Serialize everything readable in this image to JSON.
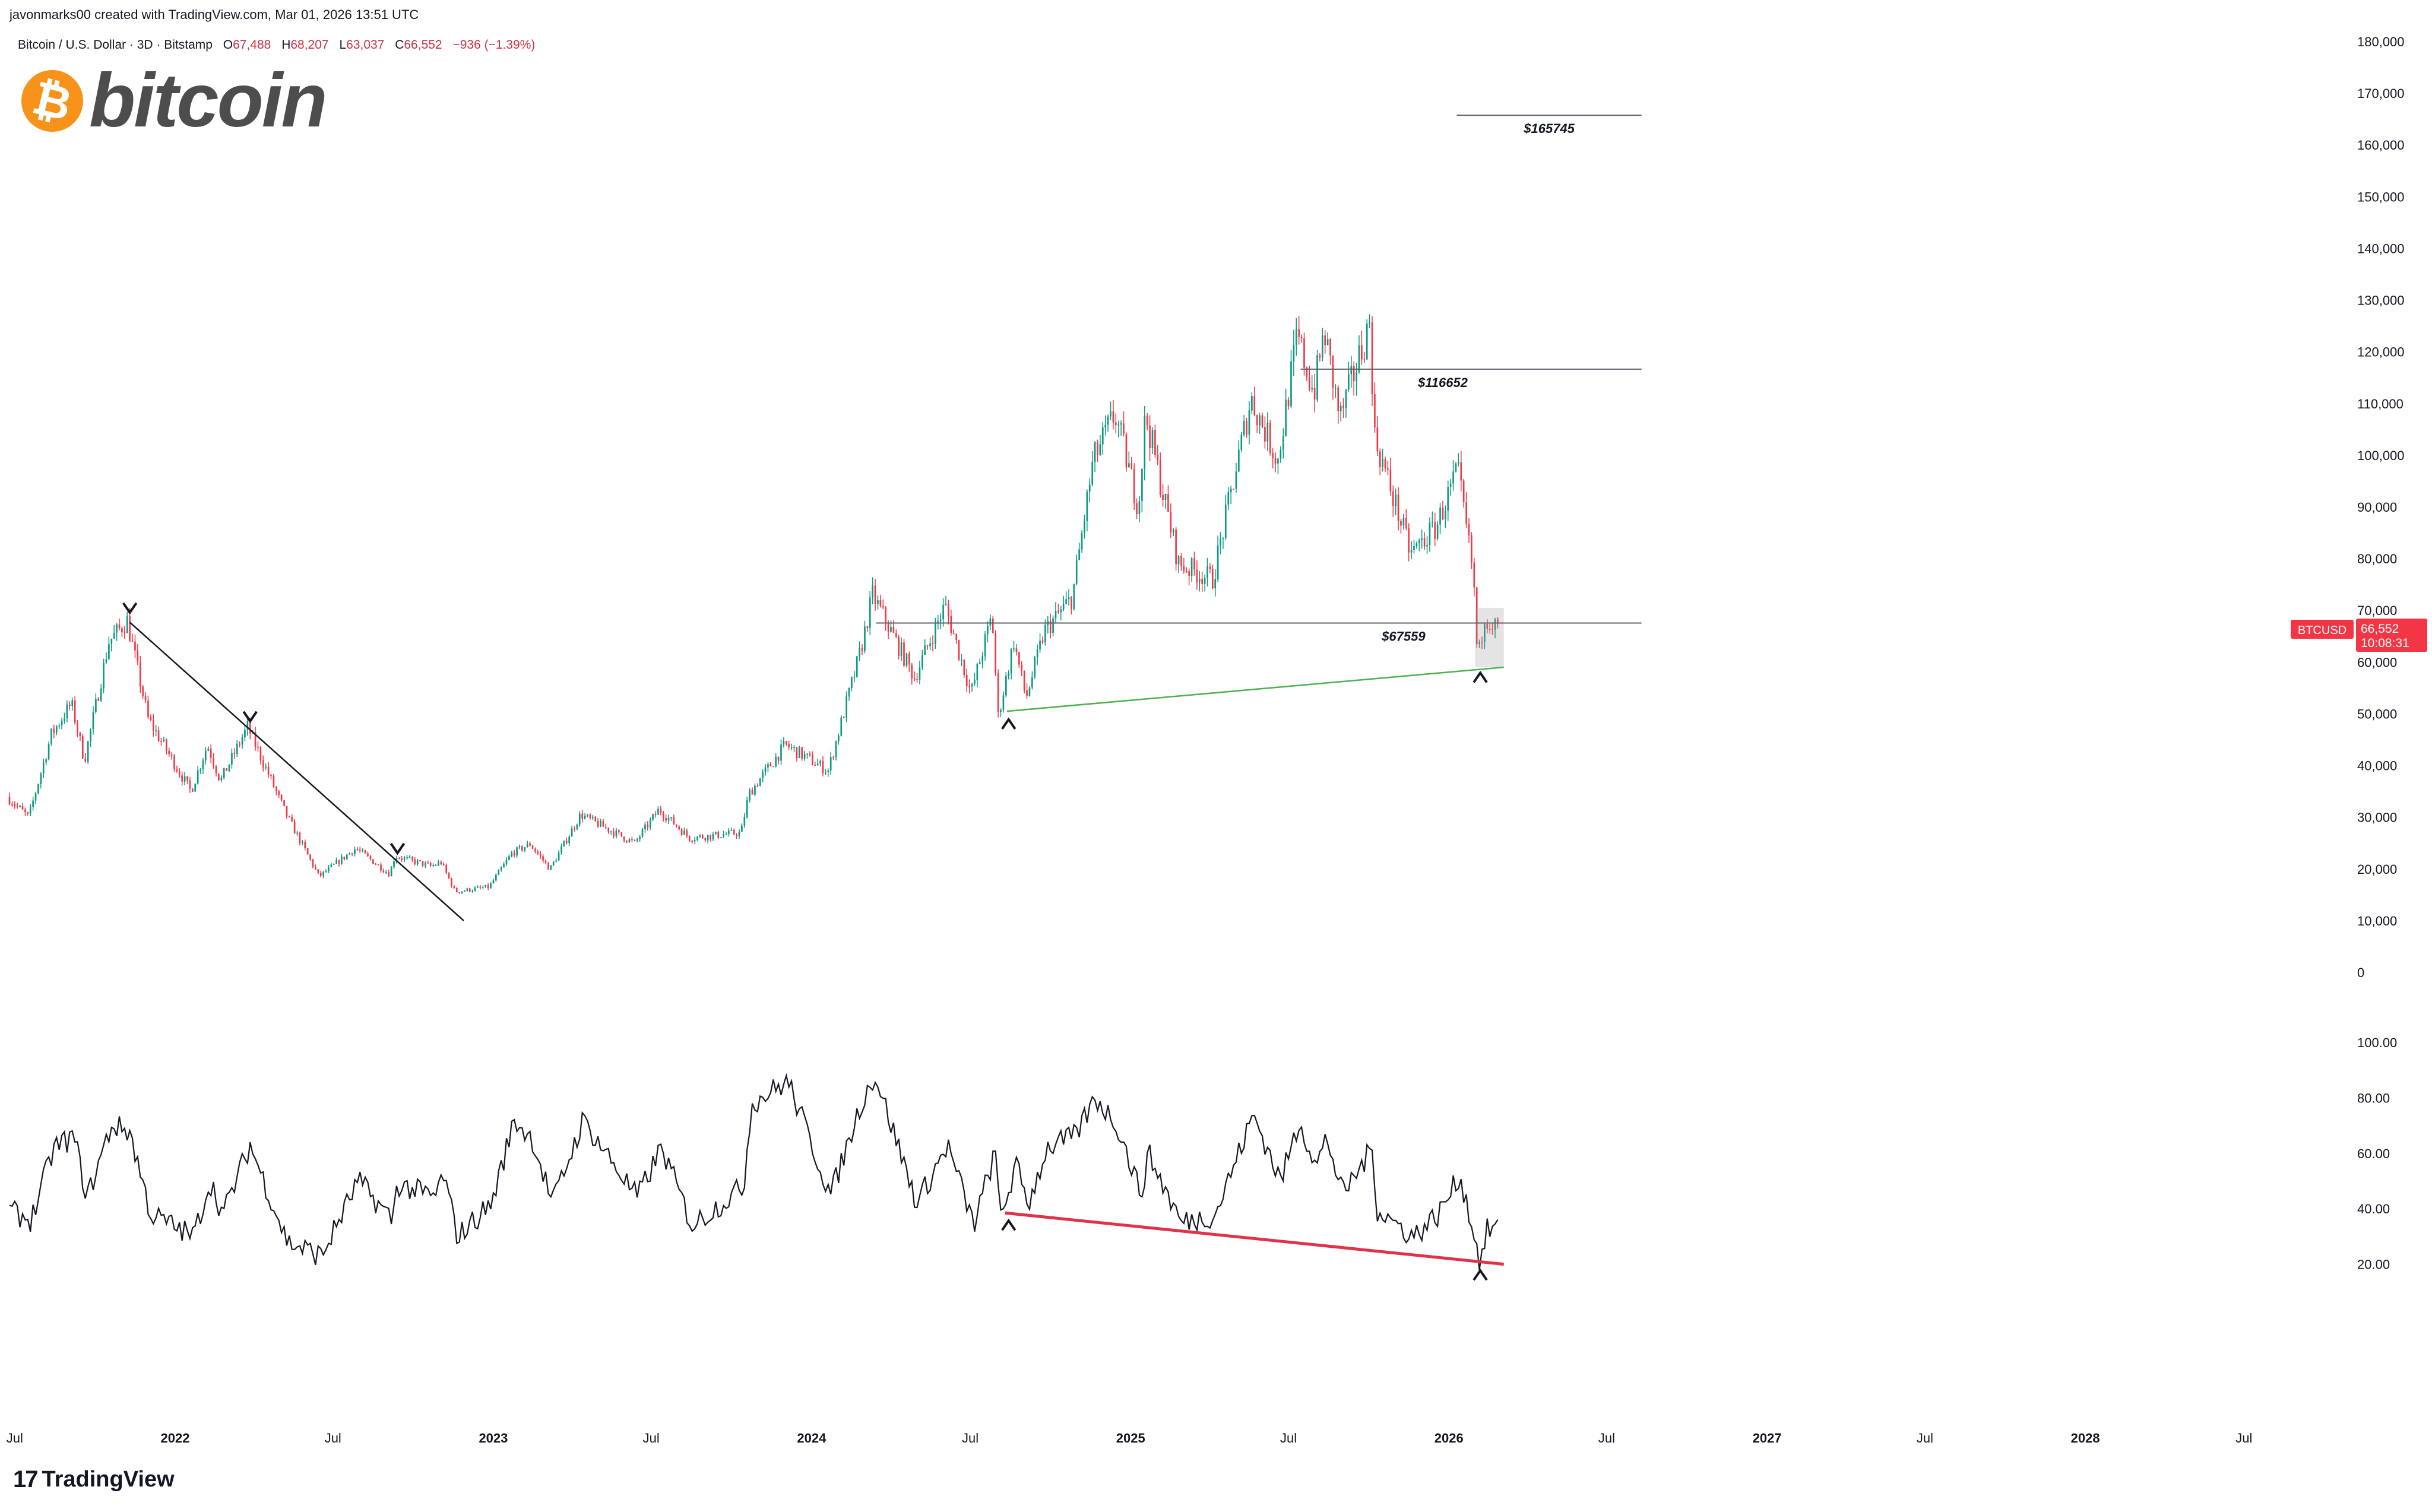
{
  "header": {
    "author_line": "javonmarks00 created with TradingView.com, Mar 01, 2026 13:51 UTC",
    "symbol": "Bitcoin / U.S. Dollar · 3D · Bitstamp",
    "ohlc": [
      {
        "k": "O",
        "v": "67,488"
      },
      {
        "k": "H",
        "v": "68,207"
      },
      {
        "k": "L",
        "v": "63,037"
      },
      {
        "k": "C",
        "v": "66,552"
      },
      {
        "k": "",
        "v": "−936 (−1.39%)"
      }
    ]
  },
  "logo": {
    "coin_glyph": "₿",
    "word": "bitcoin",
    "coin_color": "#f7931a"
  },
  "brand": {
    "mark": "17",
    "word": "TradingView"
  },
  "price_tag": {
    "symbol": "BTCUSD",
    "price": "66,552",
    "countdown": "10:08:31",
    "color": "#f23645"
  },
  "colors": {
    "up": "#089981",
    "down": "#f23645",
    "support": "#4caf50",
    "divergence": "#e0334a"
  },
  "chart_data": [
    {
      "type": "candlestick",
      "title": "",
      "ylabel": "",
      "ylim": [
        0,
        180000
      ],
      "y_ticks": [
        "0",
        "10,000",
        "20,000",
        "30,000",
        "40,000",
        "50,000",
        "60,000",
        "70,000",
        "80,000",
        "90,000",
        "100,000",
        "110,000",
        "120,000",
        "130,000",
        "140,000",
        "150,000",
        "160,000",
        "170,000",
        "180,000"
      ],
      "y_tick_values": [
        0,
        10000,
        20000,
        30000,
        40000,
        50000,
        60000,
        70000,
        80000,
        90000,
        100000,
        110000,
        120000,
        130000,
        140000,
        150000,
        160000,
        170000,
        180000
      ],
      "x_ticks": [
        {
          "label": "Jul",
          "date": "2021-07-01",
          "bold": false
        },
        {
          "label": "2022",
          "date": "2022-01-01",
          "bold": true
        },
        {
          "label": "Jul",
          "date": "2022-07-01",
          "bold": false
        },
        {
          "label": "2023",
          "date": "2023-01-01",
          "bold": true
        },
        {
          "label": "Jul",
          "date": "2023-07-01",
          "bold": false
        },
        {
          "label": "2024",
          "date": "2024-01-01",
          "bold": true
        },
        {
          "label": "Jul",
          "date": "2024-07-01",
          "bold": false
        },
        {
          "label": "2025",
          "date": "2025-01-01",
          "bold": true
        },
        {
          "label": "Jul",
          "date": "2025-07-01",
          "bold": false
        },
        {
          "label": "2026",
          "date": "2026-01-01",
          "bold": true
        },
        {
          "label": "Jul",
          "date": "2026-07-01",
          "bold": false
        },
        {
          "label": "2027",
          "date": "2027-01-01",
          "bold": true
        },
        {
          "label": "Jul",
          "date": "2027-07-01",
          "bold": false
        },
        {
          "label": "2028",
          "date": "2028-01-01",
          "bold": true
        },
        {
          "label": "Jul",
          "date": "2028-07-01",
          "bold": false
        }
      ],
      "price_path": [
        [
          "2021-06-25",
          34000
        ],
        [
          "2021-07-20",
          30000
        ],
        [
          "2021-08-15",
          46000
        ],
        [
          "2021-09-07",
          52000
        ],
        [
          "2021-09-22",
          41000
        ],
        [
          "2021-10-20",
          64000
        ],
        [
          "2021-11-10",
          68000
        ],
        [
          "2021-12-04",
          49000
        ],
        [
          "2022-01-22",
          35000
        ],
        [
          "2022-02-10",
          44000
        ],
        [
          "2022-02-25",
          37000
        ],
        [
          "2022-03-28",
          47500
        ],
        [
          "2022-05-10",
          31000
        ],
        [
          "2022-06-18",
          18500
        ],
        [
          "2022-07-30",
          24000
        ],
        [
          "2022-09-07",
          19000
        ],
        [
          "2022-09-13",
          22500
        ],
        [
          "2022-10-25",
          20500
        ],
        [
          "2022-11-05",
          21300
        ],
        [
          "2022-11-21",
          15600
        ],
        [
          "2022-12-30",
          16500
        ],
        [
          "2023-01-25",
          23000
        ],
        [
          "2023-02-15",
          24800
        ],
        [
          "2023-03-10",
          20000
        ],
        [
          "2023-04-14",
          30500
        ],
        [
          "2023-06-15",
          25000
        ],
        [
          "2023-07-13",
          31500
        ],
        [
          "2023-08-17",
          26000
        ],
        [
          "2023-10-15",
          27000
        ],
        [
          "2023-10-24",
          34500
        ],
        [
          "2023-12-05",
          44000
        ],
        [
          "2024-01-23",
          39000
        ],
        [
          "2024-02-29",
          62000
        ],
        [
          "2024-03-14",
          73000
        ],
        [
          "2024-05-01",
          57000
        ],
        [
          "2024-06-05",
          71000
        ],
        [
          "2024-07-05",
          54000
        ],
        [
          "2024-07-29",
          69000
        ],
        [
          "2024-08-05",
          49500
        ],
        [
          "2024-08-23",
          64000
        ],
        [
          "2024-09-06",
          53000
        ],
        [
          "2024-09-27",
          66000
        ],
        [
          "2024-10-29",
          72500
        ],
        [
          "2024-11-22",
          99000
        ],
        [
          "2024-12-17",
          108000
        ],
        [
          "2025-01-13",
          90000
        ],
        [
          "2025-01-21",
          108000
        ],
        [
          "2025-02-28",
          79000
        ],
        [
          "2025-04-08",
          76000
        ],
        [
          "2025-05-22",
          111000
        ],
        [
          "2025-06-22",
          99000
        ],
        [
          "2025-07-14",
          123000
        ],
        [
          "2025-08-02",
          112000
        ],
        [
          "2025-08-14",
          124000
        ],
        [
          "2025-09-01",
          107000
        ],
        [
          "2025-10-06",
          126000
        ],
        [
          "2025-10-10",
          104000
        ],
        [
          "2025-11-21",
          81000
        ],
        [
          "2025-12-20",
          86000
        ],
        [
          "2026-01-14",
          97000
        ],
        [
          "2026-02-01",
          77000
        ],
        [
          "2026-02-06",
          60000
        ],
        [
          "2026-02-14",
          69000
        ],
        [
          "2026-02-28",
          66552
        ]
      ],
      "horizontal_levels": [
        {
          "label": "$165745",
          "value": 165745,
          "from": "2026-01-10",
          "to": "2026-08-10"
        },
        {
          "label": "$116652",
          "value": 116652,
          "from": "2025-07-15",
          "to": "2026-08-10"
        },
        {
          "label": "$67559",
          "value": 67559,
          "from": "2024-03-15",
          "to": "2026-08-10"
        }
      ],
      "trendlines": [
        {
          "name": "downtrend",
          "color": "#131722",
          "points": [
            [
              "2021-11-10",
              67700
            ],
            [
              "2022-11-28",
              10000
            ]
          ]
        },
        {
          "name": "support",
          "color": "#4caf50",
          "points": [
            [
              "2024-08-12",
              50500
            ],
            [
              "2026-03-05",
              59000
            ]
          ]
        }
      ],
      "markers": [
        {
          "glyph": "⌄",
          "date": "2021-11-10",
          "value": 70500,
          "pos": "above"
        },
        {
          "glyph": "⌄",
          "date": "2022-03-28",
          "value": 49500,
          "pos": "above"
        },
        {
          "glyph": "⌄",
          "date": "2022-09-13",
          "value": 24000,
          "pos": "above"
        },
        {
          "glyph": "^",
          "date": "2024-08-14",
          "value": 48000,
          "pos": "below"
        },
        {
          "glyph": "^",
          "date": "2026-02-06",
          "value": 57000,
          "pos": "below"
        }
      ],
      "highlight_box": {
        "from": "2026-01-31",
        "to": "2026-03-05",
        "low": 59000,
        "high": 70500
      }
    },
    {
      "type": "line",
      "title": "",
      "ylim": [
        0,
        100
      ],
      "y_ticks": [
        "20.00",
        "40.00",
        "60.00",
        "80.00",
        "100.00"
      ],
      "y_tick_values": [
        20,
        40,
        60,
        80,
        100
      ],
      "series": [
        {
          "values": [
            [
              "2021-06-25",
              39
            ],
            [
              "2021-07-20",
              36
            ],
            [
              "2021-08-15",
              62
            ],
            [
              "2021-09-07",
              66
            ],
            [
              "2021-09-22",
              44
            ],
            [
              "2021-10-20",
              70
            ],
            [
              "2021-11-10",
              68
            ],
            [
              "2021-12-04",
              38
            ],
            [
              "2022-01-22",
              30
            ],
            [
              "2022-02-10",
              50
            ],
            [
              "2022-02-25",
              38
            ],
            [
              "2022-03-28",
              63
            ],
            [
              "2022-05-10",
              28
            ],
            [
              "2022-06-18",
              23
            ],
            [
              "2022-07-30",
              50
            ],
            [
              "2022-09-07",
              36
            ],
            [
              "2022-09-13",
              49
            ],
            [
              "2022-10-25",
              44
            ],
            [
              "2022-11-05",
              52
            ],
            [
              "2022-11-21",
              30
            ],
            [
              "2022-12-30",
              42
            ],
            [
              "2023-01-25",
              72
            ],
            [
              "2023-02-15",
              65
            ],
            [
              "2023-03-10",
              42
            ],
            [
              "2023-04-14",
              72
            ],
            [
              "2023-06-15",
              44
            ],
            [
              "2023-07-13",
              62
            ],
            [
              "2023-08-17",
              34
            ],
            [
              "2023-10-15",
              48
            ],
            [
              "2023-10-24",
              78
            ],
            [
              "2023-12-05",
              86
            ],
            [
              "2024-01-23",
              45
            ],
            [
              "2024-02-29",
              80
            ],
            [
              "2024-03-14",
              88
            ],
            [
              "2024-05-01",
              42
            ],
            [
              "2024-06-05",
              63
            ],
            [
              "2024-07-05",
              34
            ],
            [
              "2024-07-29",
              60
            ],
            [
              "2024-08-05",
              38
            ],
            [
              "2024-08-23",
              55
            ],
            [
              "2024-09-06",
              42
            ],
            [
              "2024-09-27",
              62
            ],
            [
              "2024-10-29",
              66
            ],
            [
              "2024-11-22",
              80
            ],
            [
              "2024-12-17",
              70
            ],
            [
              "2025-01-13",
              45
            ],
            [
              "2025-01-21",
              60
            ],
            [
              "2025-02-28",
              35
            ],
            [
              "2025-04-08",
              38
            ],
            [
              "2025-05-22",
              74
            ],
            [
              "2025-06-22",
              50
            ],
            [
              "2025-07-14",
              72
            ],
            [
              "2025-08-02",
              55
            ],
            [
              "2025-08-14",
              66
            ],
            [
              "2025-09-01",
              45
            ],
            [
              "2025-10-06",
              62
            ],
            [
              "2025-10-10",
              40
            ],
            [
              "2025-11-21",
              30
            ],
            [
              "2025-12-20",
              38
            ],
            [
              "2026-01-14",
              52
            ],
            [
              "2026-02-01",
              28
            ],
            [
              "2026-02-06",
              20
            ],
            [
              "2026-02-14",
              32
            ],
            [
              "2026-02-28",
              34
            ]
          ]
        }
      ],
      "trendlines": [
        {
          "name": "divergence",
          "color": "#e0334a",
          "points": [
            [
              "2024-08-10",
              38.5
            ],
            [
              "2026-03-05",
              20
            ]
          ]
        }
      ],
      "markers": [
        {
          "glyph": "^",
          "date": "2024-08-14",
          "value": 34,
          "pos": "below"
        },
        {
          "glyph": "^",
          "date": "2026-02-06",
          "value": 16,
          "pos": "below"
        }
      ]
    }
  ]
}
